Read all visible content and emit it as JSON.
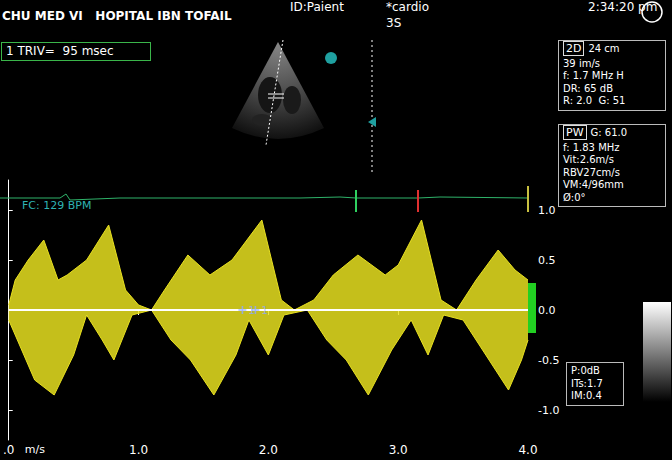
{
  "header": {
    "left": "CHU MED VI   HOPITAL IBN TOFAIL",
    "id": "ID:Paient",
    "preset": "*cardio",
    "probe": "3S",
    "time": "2:34:20 pm"
  },
  "measurement": "1 TRIV=  95 msec",
  "panel_2d": {
    "title": "2D",
    "lines": [
      "24 cm",
      "39 im/s",
      "f: 1.7 MHz H",
      "DR: 65 dB",
      "R: 2.0  G: 51"
    ]
  },
  "panel_pw": {
    "title": "PW",
    "lines": [
      "G: 61.0",
      "f: 1.83 MHz",
      "Vit:2.6m/s",
      "RBV27cm/s",
      "VM:4/96mm",
      "Ø:0°"
    ]
  },
  "panel_output": [
    "P:0dB",
    "ITs:1.7",
    "IM:0.4"
  ],
  "chart_data": {
    "type": "area",
    "ecg_label": "FC: 129 BPM",
    "y_unit": "m/s",
    "xlim": [
      0,
      4
    ],
    "xticks": [
      {
        "value": 0,
        "label": ".0"
      },
      {
        "value": 1,
        "label": "1.0"
      },
      {
        "value": 2,
        "label": "2.0"
      },
      {
        "value": 3,
        "label": "3.0"
      },
      {
        "value": 4,
        "label": "4.0"
      }
    ],
    "ylim": [
      -1.3,
      1.3
    ],
    "yticks": [
      {
        "value": 1,
        "label": "1.0"
      },
      0.5,
      {
        "value": 0,
        "label": "0.0"
      },
      -0.5,
      {
        "value": -1,
        "label": "-1.0"
      }
    ],
    "grid": false,
    "series": [
      {
        "color": "#e8e020",
        "x": [
          0,
          0.05,
          0.15,
          0.27,
          0.38,
          0.45,
          0.6,
          0.77,
          0.9,
          1.0,
          1.1,
          1.2,
          1.38,
          1.55,
          1.72,
          1.95,
          2.1,
          2.2,
          2.35,
          2.5,
          2.69,
          2.9,
          3.0,
          3.18,
          3.33,
          3.45,
          3.6,
          3.77,
          3.9,
          4.0
        ],
        "values": [
          0.05,
          0.3,
          0.5,
          0.7,
          0.3,
          0.35,
          0.5,
          0.85,
          0.2,
          0.05,
          0,
          0.2,
          0.55,
          0.35,
          0.5,
          0.9,
          0.1,
          0,
          0.1,
          0.35,
          0.55,
          0.35,
          0.45,
          0.9,
          0.1,
          0,
          0.3,
          0.6,
          0.4,
          0.3
        ]
      },
      {
        "color": "#e8e020",
        "x": [
          0,
          0.1,
          0.2,
          0.35,
          0.5,
          0.6,
          0.72,
          0.81,
          0.95,
          1.1,
          1.25,
          1.4,
          1.58,
          1.75,
          1.85,
          2.0,
          2.12,
          2.3,
          2.45,
          2.6,
          2.77,
          2.95,
          3.1,
          3.23,
          3.35,
          3.5,
          3.65,
          3.85,
          3.95,
          4.0
        ],
        "values": [
          -0.1,
          -0.4,
          -0.7,
          -0.85,
          -0.45,
          -0.05,
          -0.3,
          -0.5,
          -0.05,
          0,
          -0.3,
          -0.5,
          -0.85,
          -0.45,
          -0.1,
          -0.45,
          -0.05,
          0,
          -0.3,
          -0.5,
          -0.85,
          -0.4,
          -0.1,
          -0.45,
          -0.05,
          -0.1,
          -0.4,
          -0.8,
          -0.5,
          -0.3
        ]
      }
    ],
    "annotations": [
      {
        "x": 1.8,
        "y": 0,
        "label": "1"
      },
      {
        "x": 1.9,
        "y": 0,
        "label": "1"
      }
    ]
  }
}
